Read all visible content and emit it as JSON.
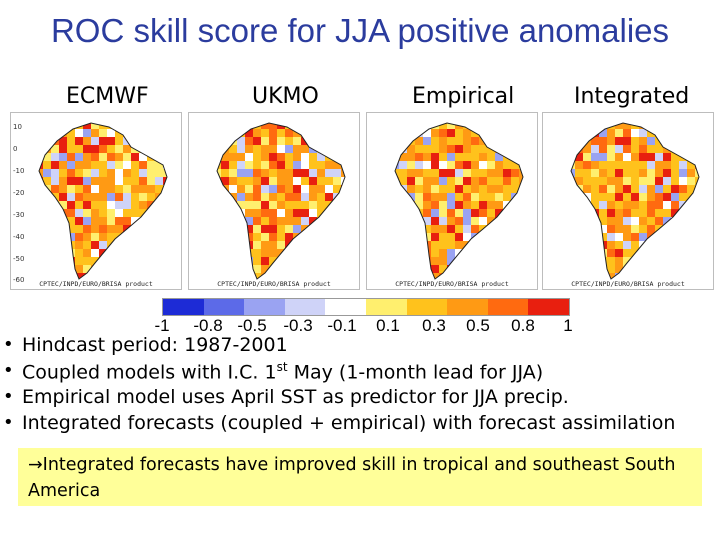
{
  "title": "ROC skill score for JJA positive anomalies",
  "columns": [
    {
      "label": "ECMWF"
    },
    {
      "label": "UKMO"
    },
    {
      "label": "Empirical"
    },
    {
      "label": "Integrated"
    }
  ],
  "map_credit": "CPTEC/INPD/EURO/BRISA product",
  "lat_ticks": [
    "10",
    "0",
    "-10",
    "-20",
    "-30",
    "-40",
    "-50",
    "-60"
  ],
  "colorbar": {
    "colors": [
      "#1d2bd6",
      "#5c6ae8",
      "#9aa3f2",
      "#cfd3f8",
      "#ffffff",
      "#ffef6e",
      "#ffc21c",
      "#ff9a14",
      "#ff6a10",
      "#e81f0f"
    ],
    "tick_labels": [
      "-1",
      "-0.8",
      "-0.5",
      "-0.3",
      "-0.1",
      "0.1",
      "0.3",
      "0.5",
      "0.8",
      "1"
    ]
  },
  "bullets": [
    {
      "text": "Hindcast period: 1987-2001"
    },
    {
      "text_before": "Coupled models with I.C. 1",
      "sup": "st",
      "text_after": " May (1-month lead for JJA)"
    },
    {
      "text": "Empirical model uses April SST as predictor for JJA precip."
    },
    {
      "text": "Integrated forecasts (coupled + empirical) with forecast assimilation"
    }
  ],
  "conclusion": {
    "arrow": "→",
    "text": "Integrated forecasts have improved skill in tropical and southeast South America"
  }
}
